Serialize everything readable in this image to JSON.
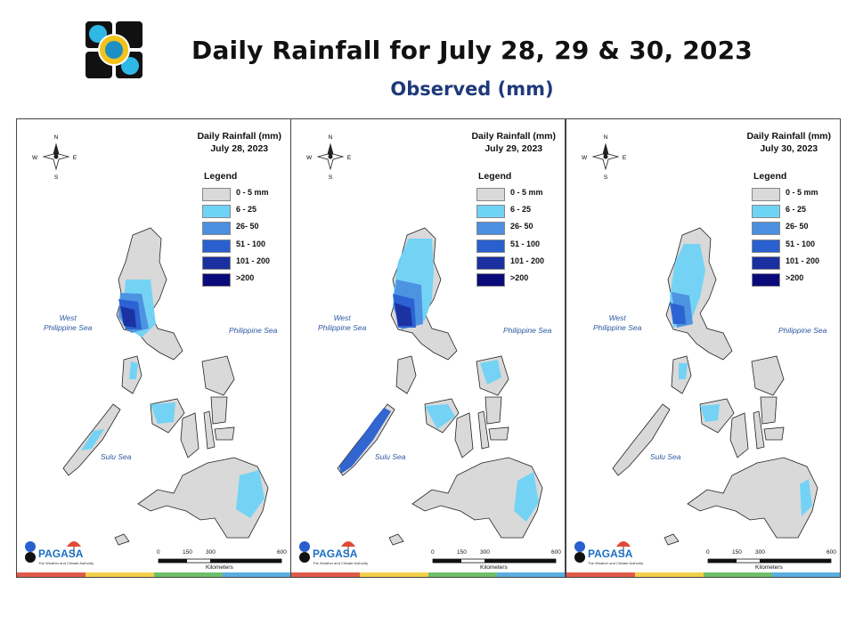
{
  "header": {
    "title": "Daily Rainfall for July 28, 29 & 30, 2023",
    "subtitle": "Observed (mm)",
    "logo": "dost-pagasa-seal"
  },
  "legend": {
    "title": "Legend",
    "items": [
      {
        "label": "0 - 5 mm",
        "color": "#d9d9d9"
      },
      {
        "label": "6 - 25",
        "color": "#6fd3f5"
      },
      {
        "label": "26- 50",
        "color": "#4a8fe0"
      },
      {
        "label": "51 - 100",
        "color": "#2a5fd0"
      },
      {
        "label": "101 - 200",
        "color": "#1a2fa0"
      },
      {
        "label": ">200",
        "color": "#0a0a7a"
      }
    ]
  },
  "panels": [
    {
      "title_line1": "Daily Rainfall (mm)",
      "title_line2": "July 28, 2023"
    },
    {
      "title_line1": "Daily Rainfall (mm)",
      "title_line2": "July 29, 2023"
    },
    {
      "title_line1": "Daily Rainfall (mm)",
      "title_line2": "July 30, 2023"
    }
  ],
  "map_labels": {
    "west_sea": "West\nPhilippine Sea",
    "east_sea": "Philippine Sea",
    "south_sea": "Sulu Sea",
    "compass": {
      "n": "N",
      "s": "S",
      "e": "E",
      "w": "W"
    }
  },
  "scale": {
    "ticks": [
      "0",
      "150",
      "300",
      "600"
    ],
    "unit": "Kilometers"
  },
  "branding": {
    "org": "PAGASA",
    "tagline": "The Weather and Climate Authority"
  }
}
